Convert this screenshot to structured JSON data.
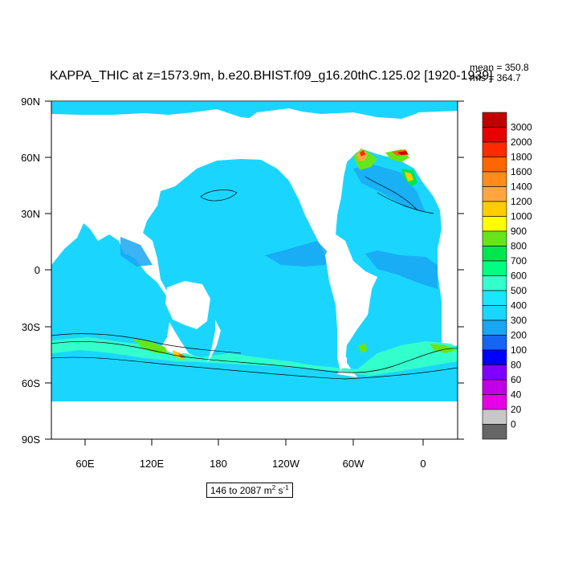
{
  "title": "KAPPA_THIC at z=1573.9m, b.e20.BHIST.f09_g16.20thC.125.02 [1920-1939]",
  "stats": {
    "mean": "mean = 350.8",
    "rms": "rms = 364.7"
  },
  "range_label": {
    "text": "146 to 2087 m",
    "exp1": "2",
    "mid": " s",
    "exp2": "-1"
  },
  "map": {
    "projection": "cylindrical equidistant",
    "lon_center": 210,
    "lat_ticks": [
      "90N",
      "60N",
      "30N",
      "0",
      "30S",
      "60S",
      "90S"
    ],
    "lon_ticks": [
      "60E",
      "120E",
      "180",
      "120W",
      "60W",
      "0"
    ],
    "ocean_base_color": "#1ad6ff",
    "land_color": "#ffffff"
  },
  "colorbar": {
    "labels": [
      "3000",
      "2000",
      "1800",
      "1600",
      "1400",
      "1200",
      "1000",
      "900",
      "800",
      "700",
      "600",
      "500",
      "400",
      "300",
      "200",
      "100",
      "80",
      "60",
      "40",
      "20",
      "0"
    ],
    "colors": [
      "#c00000",
      "#e60000",
      "#ff2b00",
      "#ff6600",
      "#ff8c1a",
      "#ffa640",
      "#ffcc00",
      "#ffff00",
      "#66e61a",
      "#00e64d",
      "#00ff80",
      "#33ffcc",
      "#1ae6ff",
      "#1ad6ff",
      "#19a6f2",
      "#1466f0",
      "#0000ff",
      "#8000ff",
      "#c000e6",
      "#e600e6",
      "#c8c8c8",
      "#666666"
    ]
  }
}
